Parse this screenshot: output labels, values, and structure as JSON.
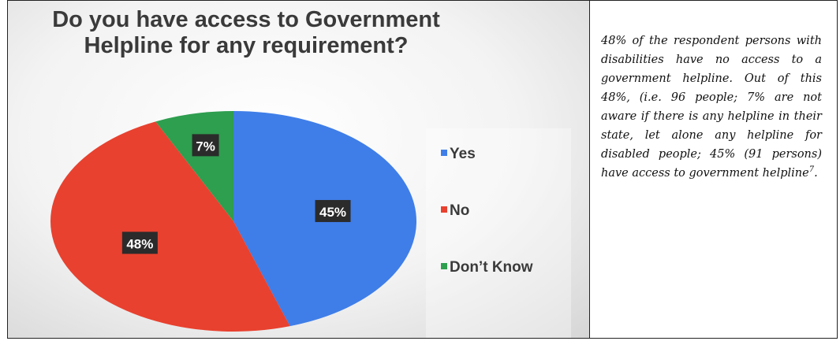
{
  "chart_data": {
    "type": "pie",
    "title_lines": [
      "Do you have access to Government",
      "Helpline for any requirement?"
    ],
    "categories": [
      "Yes",
      "No",
      "Don’t Know"
    ],
    "values": [
      45,
      48,
      7
    ],
    "labels": [
      "45%",
      "48%",
      "7%"
    ],
    "colors": [
      "#3f7ee8",
      "#e8412f",
      "#2e9e4f"
    ],
    "legend_position": "right"
  },
  "description": {
    "text": "48% of the respondent persons with disabilities have no access to a government helpline. Out of this 48%, (i.e. 96 people; 7% are not aware if there is any helpline in their state, let alone any helpline for disabled people; 45% (91 persons) have access to government helpline",
    "footnote": "7",
    "end": "."
  }
}
